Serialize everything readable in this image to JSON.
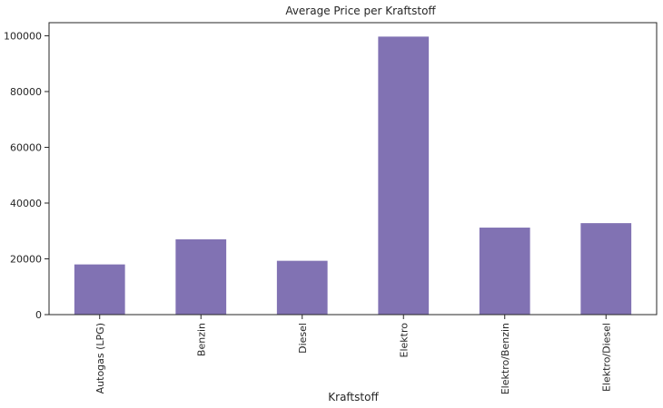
{
  "chart_data": {
    "type": "bar",
    "title": "Average Price per Kraftstoff",
    "xlabel": "Kraftstoff",
    "ylabel": "",
    "categories": [
      "Autogas (LPG)",
      "Benzin",
      "Diesel",
      "Elektro",
      "Elektro/Benzin",
      "Elektro/Diesel"
    ],
    "values": [
      18000,
      27000,
      19300,
      99700,
      31200,
      32800
    ],
    "yticks": [
      0,
      20000,
      40000,
      60000,
      80000,
      100000
    ],
    "ylim": [
      0,
      104700
    ],
    "grid": false,
    "legend": "none",
    "bar_color": "#8172b3",
    "axis_color": "#262626"
  }
}
